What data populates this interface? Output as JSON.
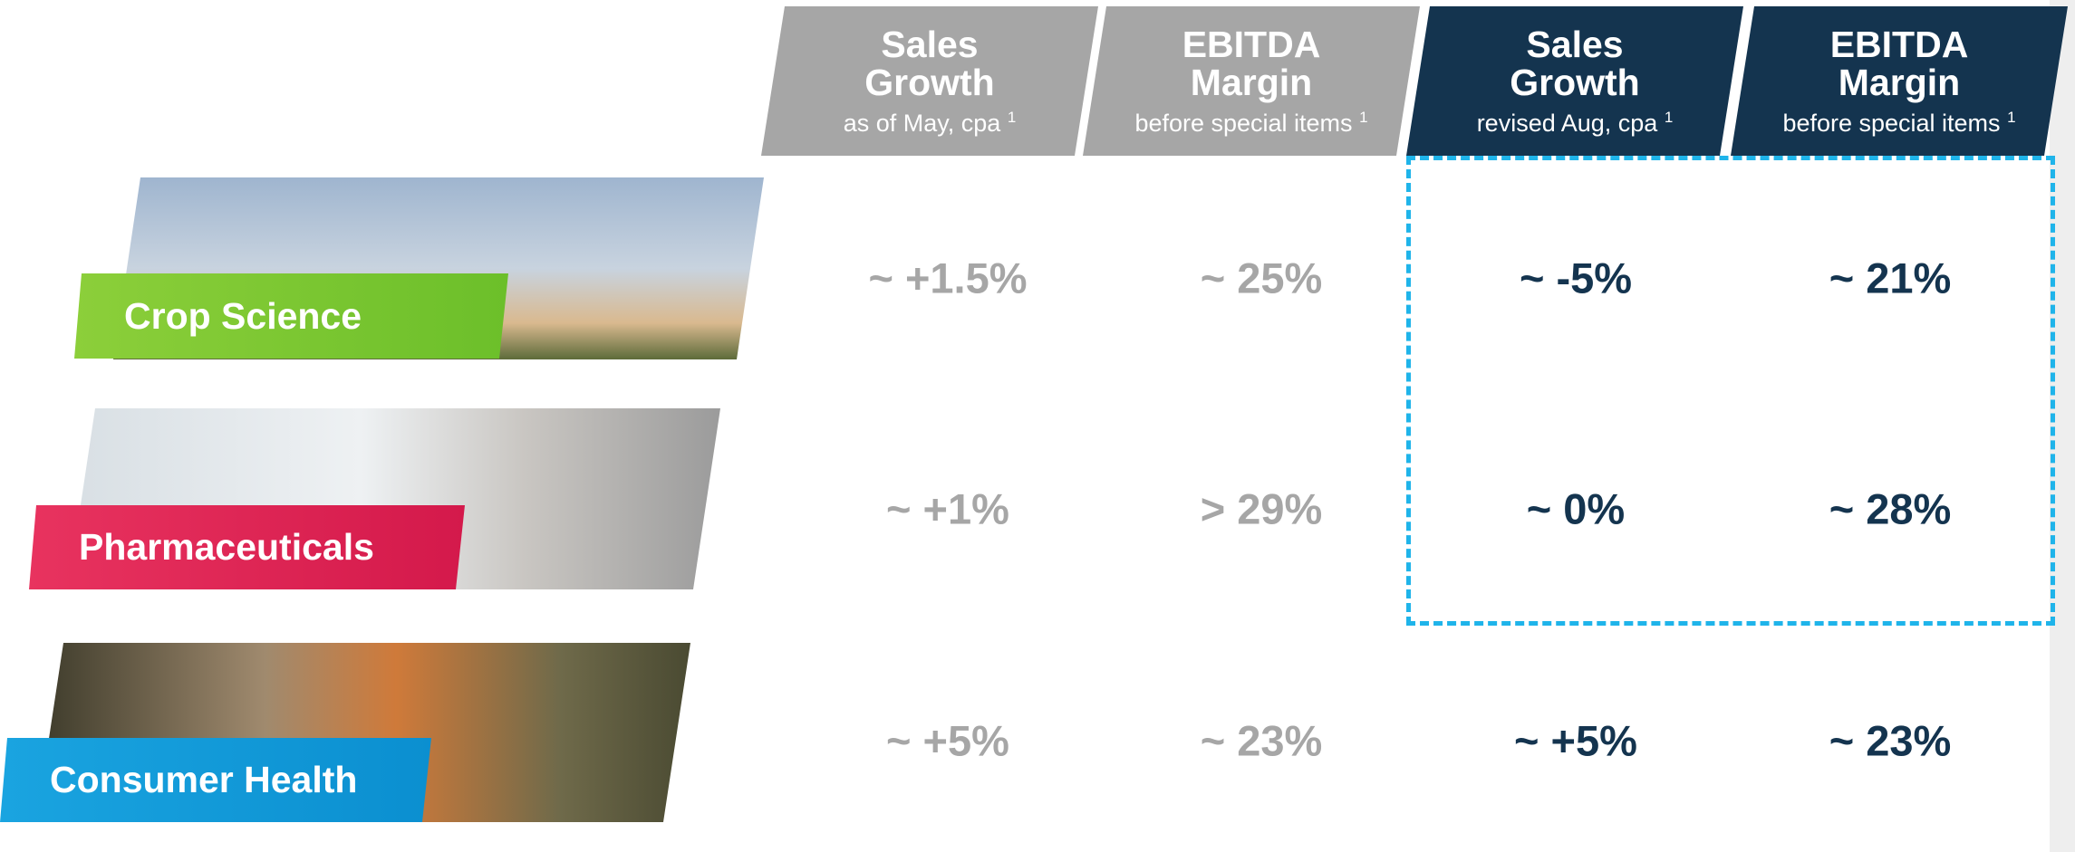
{
  "headers": [
    {
      "title": "Sales Growth",
      "subtitle": "as of May, cpa",
      "note": "1"
    },
    {
      "title": "EBITDA Margin",
      "subtitle": "before special items",
      "note": "1"
    },
    {
      "title": "Sales Growth",
      "subtitle": "revised Aug, cpa",
      "note": "1"
    },
    {
      "title": "EBITDA Margin",
      "subtitle": "before special items",
      "note": "1"
    }
  ],
  "rows": [
    {
      "label": "Crop Science",
      "cells": [
        "~ +1.5%",
        "~ 25%",
        "~ -5%",
        "~ 21%"
      ]
    },
    {
      "label": "Pharmaceuticals",
      "cells": [
        "~ +1%",
        "> 29%",
        "~ 0%",
        "~ 28%"
      ]
    },
    {
      "label": "Consumer Health",
      "cells": [
        "~ +5%",
        "~ 23%",
        "~ +5%",
        "~ 23%"
      ]
    }
  ]
}
